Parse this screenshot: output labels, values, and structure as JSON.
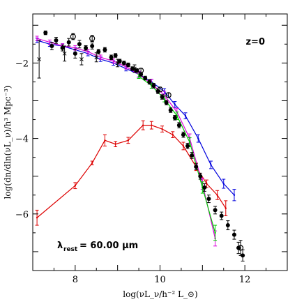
{
  "chart_data": {
    "type": "scatter",
    "title": "",
    "xlabel": "log(νL_ν/h⁻² L_⊙)",
    "ylabel": "log(dn/dln(νL_ν)/h³ Mpc⁻³)",
    "xlim": [
      7.0,
      13.0
    ],
    "ylim": [
      -7.5,
      -0.7
    ],
    "xticks": [
      8,
      10,
      12
    ],
    "yticks": [
      -2,
      -4,
      -6
    ],
    "xtick_labels": [
      "8",
      "10",
      "12"
    ],
    "ytick_labels": [
      "−2",
      "−4",
      "−6"
    ],
    "annotations": {
      "redshift": "z=0",
      "lambda_symbol": "λ",
      "lambda_sub": "rest",
      "lambda_value": "= 60.00 μm"
    },
    "grid": false,
    "legend": "none",
    "series": [
      {
        "color": "#dd0000",
        "style": "line-errorbar",
        "x": [
          7.1,
          8.0,
          8.4,
          8.7,
          8.95,
          9.25,
          9.6,
          9.8,
          10.05,
          10.3,
          10.55,
          10.85,
          11.1,
          11.35,
          11.55
        ],
        "y": [
          -6.1,
          -5.25,
          -4.65,
          -4.05,
          -4.15,
          -4.05,
          -3.65,
          -3.65,
          -3.75,
          -3.9,
          -4.2,
          -4.75,
          -5.2,
          -5.5,
          -5.85
        ],
        "err": [
          0.2,
          0.08,
          0.05,
          0.15,
          0.07,
          0.08,
          0.12,
          0.1,
          0.08,
          0.08,
          0.1,
          0.1,
          0.1,
          0.12,
          0.2
        ]
      },
      {
        "color": "#0000dd",
        "style": "line-errorbar",
        "x": [
          7.1,
          7.4,
          7.7,
          8.0,
          8.3,
          8.6,
          8.9,
          9.2,
          9.5,
          9.8,
          10.1,
          10.35,
          10.6,
          10.9,
          11.2,
          11.5,
          11.75
        ],
        "y": [
          -1.4,
          -1.5,
          -1.55,
          -1.65,
          -1.75,
          -1.9,
          -2.0,
          -2.15,
          -2.3,
          -2.5,
          -2.75,
          -3.1,
          -3.4,
          -4.0,
          -4.7,
          -5.2,
          -5.5
        ],
        "err": [
          0.06,
          0.06,
          0.06,
          0.06,
          0.06,
          0.06,
          0.06,
          0.06,
          0.07,
          0.07,
          0.07,
          0.08,
          0.08,
          0.1,
          0.1,
          0.12,
          0.15
        ]
      },
      {
        "color": "#dd00dd",
        "style": "line-errorbar",
        "x": [
          7.1,
          7.4,
          7.7,
          8.0,
          8.3,
          8.6,
          8.9,
          9.2,
          9.5,
          9.8,
          10.1,
          10.4,
          10.7,
          11.0,
          11.3
        ],
        "y": [
          -1.35,
          -1.45,
          -1.55,
          -1.6,
          -1.7,
          -1.85,
          -1.95,
          -2.1,
          -2.3,
          -2.55,
          -2.85,
          -3.3,
          -4.0,
          -5.2,
          -6.65
        ],
        "err": [
          0.06,
          0.06,
          0.06,
          0.06,
          0.06,
          0.06,
          0.06,
          0.06,
          0.08,
          0.12,
          0.1,
          0.1,
          0.12,
          0.15,
          0.2
        ]
      },
      {
        "color": "#00cc00",
        "style": "line-errorbar",
        "x": [
          9.5,
          9.8,
          10.1,
          10.4,
          10.7,
          11.0,
          11.3
        ],
        "y": [
          -2.35,
          -2.6,
          -2.95,
          -3.4,
          -4.1,
          -5.3,
          -6.5
        ],
        "err": [
          0.06,
          0.07,
          0.08,
          0.1,
          0.12,
          0.15,
          0.2
        ]
      },
      {
        "color": "#000000",
        "style": "points-errorbar",
        "marker": "filled-circle",
        "x": [
          7.3,
          7.45,
          7.55,
          7.7,
          7.85,
          8.0,
          8.1,
          8.25,
          8.4,
          8.55,
          8.7,
          8.85,
          8.95,
          9.05,
          9.15,
          9.25,
          9.35,
          9.45,
          9.55,
          9.65,
          9.75,
          9.85,
          9.95,
          10.05,
          10.15,
          10.25,
          10.35,
          10.45,
          10.55,
          10.65,
          10.75,
          10.85,
          10.95,
          11.05,
          11.15,
          11.3,
          11.45,
          11.6,
          11.75,
          11.85,
          11.95
        ],
        "y": [
          -1.2,
          -1.55,
          -1.4,
          -1.6,
          -1.45,
          -1.75,
          -1.5,
          -1.6,
          -1.55,
          -1.7,
          -1.65,
          -1.85,
          -1.8,
          -1.95,
          -2.0,
          -2.05,
          -2.15,
          -2.2,
          -2.3,
          -2.4,
          -2.5,
          -2.6,
          -2.75,
          -2.9,
          -3.05,
          -3.25,
          -3.45,
          -3.65,
          -3.9,
          -4.2,
          -4.45,
          -4.75,
          -5.0,
          -5.3,
          -5.6,
          -5.9,
          -6.05,
          -6.3,
          -6.55,
          -6.9,
          -7.1
        ],
        "err": [
          0.05,
          0.1,
          0.08,
          0.08,
          0.1,
          0.12,
          0.1,
          0.06,
          0.08,
          0.06,
          0.06,
          0.06,
          0.05,
          0.05,
          0.05,
          0.05,
          0.05,
          0.05,
          0.05,
          0.05,
          0.06,
          0.06,
          0.06,
          0.06,
          0.06,
          0.06,
          0.06,
          0.07,
          0.07,
          0.07,
          0.08,
          0.08,
          0.08,
          0.1,
          0.1,
          0.1,
          0.1,
          0.12,
          0.12,
          0.15,
          0.15
        ]
      },
      {
        "color": "#000000",
        "style": "points-errorbar",
        "marker": "open-circle",
        "x": [
          7.95,
          8.4,
          9.55,
          10.0,
          10.2,
          11.9
        ],
        "y": [
          -1.3,
          -1.35,
          -2.2,
          -2.7,
          -2.85,
          -6.9
        ],
        "err": [
          0.08,
          0.08,
          0.06,
          0.06,
          0.06,
          0.2
        ]
      },
      {
        "color": "#000000",
        "style": "points-errorbar",
        "marker": "cross",
        "x": [
          7.15,
          7.75,
          8.15,
          8.5,
          9.0,
          9.4
        ],
        "y": [
          -1.9,
          -1.75,
          -1.9,
          -1.85,
          -2.0,
          -2.15
        ],
        "err": [
          0.5,
          0.2,
          0.15,
          0.12,
          0.1,
          0.1
        ]
      }
    ]
  }
}
